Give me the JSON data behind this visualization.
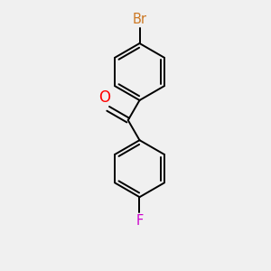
{
  "background_color": "#f0f0f0",
  "bond_color": "#000000",
  "br_color": "#cc7722",
  "o_color": "#ff0000",
  "f_color": "#cc00cc",
  "br_label": "Br",
  "o_label": "O",
  "f_label": "F",
  "br_fontsize": 10.5,
  "o_fontsize": 12,
  "f_fontsize": 10.5,
  "line_width": 1.4,
  "figsize": [
    3.0,
    3.0
  ],
  "dpi": 100,
  "xlim": [
    0,
    10
  ],
  "ylim": [
    0,
    10
  ]
}
